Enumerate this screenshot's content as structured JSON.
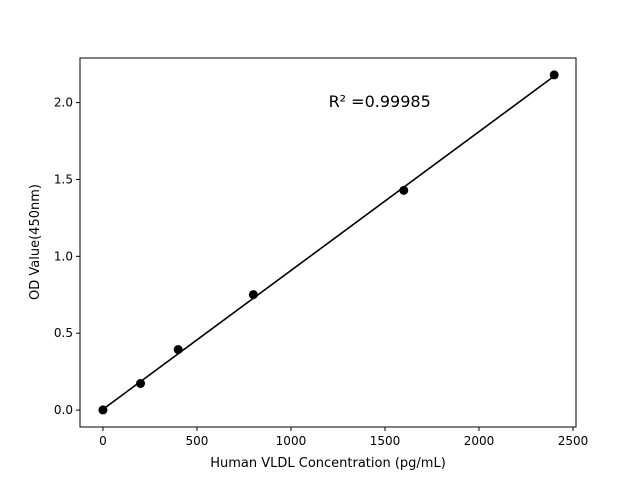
{
  "chart_data": {
    "type": "scatter",
    "title": "",
    "xlabel": "Human VLDL Concentration (pg/mL)",
    "ylabel": "OD Value(450nm)",
    "xlim": [
      -122,
      2516
    ],
    "ylim": [
      -0.11,
      2.29
    ],
    "xticks": [
      0,
      500,
      1000,
      1500,
      2000,
      2500
    ],
    "xtick_labels": [
      "0",
      "500",
      "1000",
      "1500",
      "2000",
      "2500"
    ],
    "yticks": [
      0.0,
      0.5,
      1.0,
      1.5,
      2.0
    ],
    "ytick_labels": [
      "0.0",
      "0.5",
      "1.0",
      "1.5",
      "2.0"
    ],
    "grid": false,
    "series": [
      {
        "x": [
          0,
          200,
          400,
          800,
          1600,
          2400
        ],
        "y": [
          0.001,
          0.173,
          0.394,
          0.751,
          1.429,
          2.18
        ],
        "marker": "circle",
        "color": "#000000"
      }
    ],
    "fit_line": {
      "x": [
        0,
        2400
      ],
      "y": [
        0.005,
        2.172
      ],
      "color": "#000000"
    },
    "annotations": [
      {
        "text": "R² =0.99985",
        "x": 1200,
        "y": 2.0
      }
    ]
  }
}
